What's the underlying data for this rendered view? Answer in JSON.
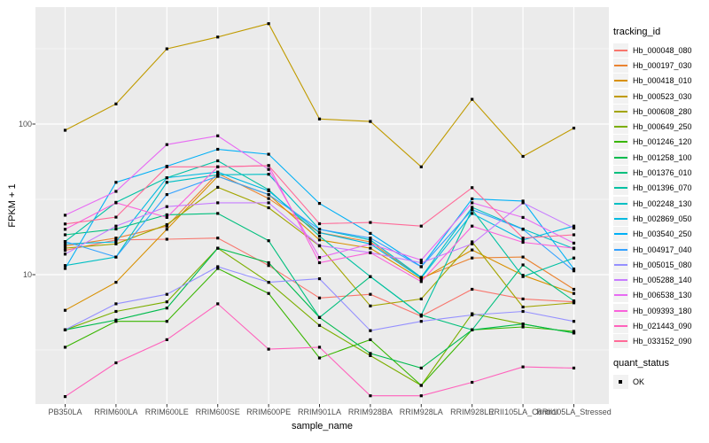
{
  "chart_data": {
    "type": "line",
    "title": "",
    "xlabel": "sample_name",
    "ylabel": "FPKM + 1",
    "y_scale": "log10",
    "ylim": [
      1.38,
      600
    ],
    "grid": true,
    "legend_position": "right",
    "legend_title": "tracking_id",
    "legend2_title": "quant_status",
    "legend2_items": [
      {
        "label": "OK",
        "marker": "black-square"
      }
    ],
    "y_tick_labels": [
      "100",
      "10"
    ],
    "y_tick_values": [
      100,
      10
    ],
    "y_minor_values": [
      316.23,
      31.623,
      3.1623
    ],
    "categories": [
      "PB350LA",
      "RRIM600LA",
      "RRIM600LE",
      "RRIM600SE",
      "RRIM600PE",
      "RRIM901LA",
      "RRIM928BA",
      "RRIM928LA",
      "RRIM928LE",
      "RRII105LA_Control",
      "RRII105LA_Stressed"
    ],
    "series": [
      {
        "name": "Hb_000048_080",
        "color": "#F8766D",
        "values": [
          14.5,
          17.0,
          17.2,
          17.5,
          11.5,
          7.0,
          7.4,
          5.3,
          8.0,
          6.9,
          6.6
        ]
      },
      {
        "name": "Hb_000197_030",
        "color": "#EA8331",
        "values": [
          15.5,
          17.5,
          21.0,
          47.0,
          32.0,
          19.0,
          16.5,
          9.5,
          12.9,
          13.1,
          8.0
        ]
      },
      {
        "name": "Hb_000418_010",
        "color": "#D89000",
        "values": [
          5.8,
          8.9,
          20.0,
          45.0,
          34.0,
          17.0,
          15.0,
          9.3,
          14.6,
          9.9,
          7.5
        ]
      },
      {
        "name": "Hb_000523_030",
        "color": "#C09B00",
        "values": [
          91,
          136,
          316,
          378,
          464,
          108,
          104,
          52,
          146,
          61,
          94
        ]
      },
      {
        "name": "Hb_000608_280",
        "color": "#A3A500",
        "values": [
          15.0,
          16.0,
          21.5,
          38.0,
          27.8,
          15.5,
          6.2,
          6.9,
          16.5,
          6.1,
          6.5
        ]
      },
      {
        "name": "Hb_000649_250",
        "color": "#7CAE00",
        "values": [
          4.3,
          5.7,
          6.6,
          15.0,
          8.9,
          4.6,
          2.9,
          1.84,
          5.5,
          4.7,
          4.1
        ]
      },
      {
        "name": "Hb_001246_120",
        "color": "#39B600",
        "values": [
          3.3,
          4.9,
          4.9,
          11.0,
          7.5,
          2.8,
          3.7,
          1.84,
          4.3,
          4.5,
          4.2
        ]
      },
      {
        "name": "Hb_001258_100",
        "color": "#00BB4E",
        "values": [
          4.3,
          5.0,
          6.0,
          15.0,
          12.0,
          5.2,
          3.0,
          2.4,
          4.3,
          4.7,
          4.1
        ]
      },
      {
        "name": "Hb_001376_010",
        "color": "#00BF7D",
        "values": [
          18.4,
          20.1,
          25.0,
          25.5,
          16.8,
          5.2,
          9.7,
          5.4,
          4.3,
          11.6,
          6.7
        ]
      },
      {
        "name": "Hb_001396_070",
        "color": "#00C1A3",
        "values": [
          16.6,
          30.2,
          44.0,
          57.0,
          36.6,
          18.0,
          9.7,
          5.4,
          27.0,
          9.7,
          12.9
        ]
      },
      {
        "name": "Hb_002248_130",
        "color": "#00BFC4",
        "values": [
          11.5,
          13.1,
          41.0,
          46.0,
          46.4,
          20.0,
          17.0,
          9.6,
          28.0,
          20.1,
          14.9
        ]
      },
      {
        "name": "Hb_002869_050",
        "color": "#00BAE0",
        "values": [
          16.0,
          16.5,
          44.0,
          48.0,
          36.0,
          19.0,
          16.0,
          9.5,
          25.5,
          17.0,
          21.0
        ]
      },
      {
        "name": "Hb_003540_250",
        "color": "#00B0F6",
        "values": [
          11.0,
          41.0,
          52.5,
          68.0,
          63.0,
          29.7,
          18.8,
          11.3,
          31.9,
          30.8,
          10.9
        ]
      },
      {
        "name": "Hb_004917_040",
        "color": "#35A2FF",
        "values": [
          16.6,
          13.1,
          34.0,
          45.0,
          34.0,
          20.0,
          17.5,
          11.3,
          27.0,
          20.0,
          10.6
        ]
      },
      {
        "name": "Hb_005015_080",
        "color": "#9590FF",
        "values": [
          4.3,
          6.4,
          7.4,
          11.3,
          8.9,
          9.4,
          4.25,
          4.9,
          5.4,
          5.7,
          4.9
        ]
      },
      {
        "name": "Hb_005288_140",
        "color": "#C77CFF",
        "values": [
          13.7,
          21.0,
          28.3,
          30.0,
          30.0,
          15.6,
          14.0,
          12.0,
          16.0,
          30.0,
          20.4
        ]
      },
      {
        "name": "Hb_006538_130",
        "color": "#E76BF3",
        "values": [
          24.8,
          35.7,
          73.0,
          83.5,
          50.0,
          13.0,
          16.0,
          12.5,
          30.0,
          24.0,
          16.2
        ]
      },
      {
        "name": "Hb_009393_180",
        "color": "#FA62DB",
        "values": [
          20.0,
          30.0,
          24.0,
          52.0,
          53.0,
          12.0,
          14.0,
          9.0,
          21.0,
          16.4,
          15.0
        ]
      },
      {
        "name": "Hb_021443_090",
        "color": "#FF62BC",
        "values": [
          1.55,
          2.6,
          3.7,
          6.4,
          3.2,
          3.3,
          1.57,
          1.57,
          1.93,
          2.44,
          2.4
        ]
      },
      {
        "name": "Hb_033152_090",
        "color": "#FF6A98",
        "values": [
          21.7,
          24.1,
          52.0,
          52.0,
          53.0,
          21.8,
          22.2,
          21.0,
          37.8,
          17.5,
          18.4
        ]
      }
    ],
    "colors": {
      "panel_bg": "#EBEBEB",
      "grid": "#FFFFFF",
      "tick": "#333333",
      "tick_label": "#4D4D4D",
      "legend_key_bg": "#F2F2F2",
      "point": "#000000"
    }
  }
}
